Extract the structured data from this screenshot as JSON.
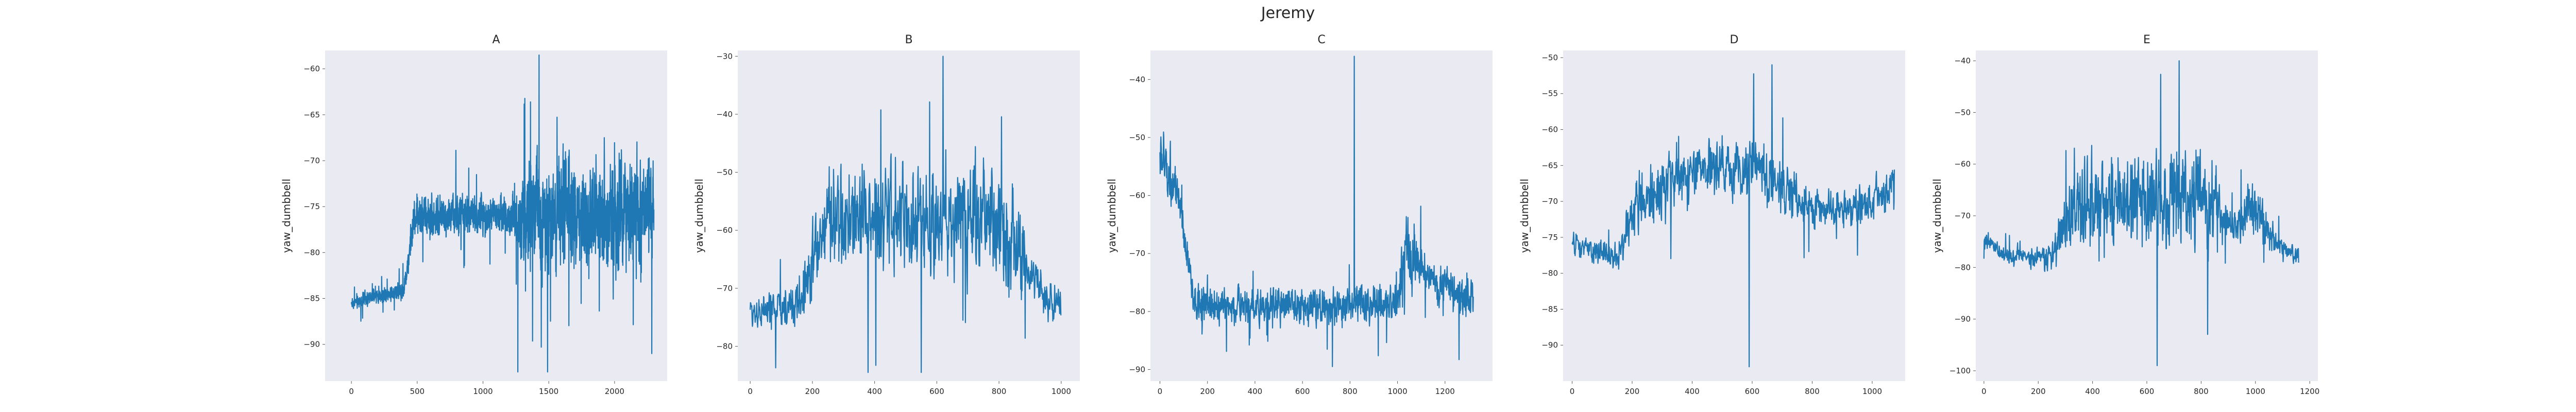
{
  "figure": {
    "suptitle": "Jeremy"
  },
  "chart_data": [
    {
      "type": "line",
      "title": "A",
      "xlabel": "",
      "ylabel": "yaw_dumbbell",
      "xlim": [
        -200,
        2400
      ],
      "ylim": [
        -94,
        -58
      ],
      "xticks": [
        0,
        500,
        1000,
        1500,
        2000
      ],
      "yticks": [
        -60,
        -65,
        -70,
        -75,
        -80,
        -85,
        -90
      ],
      "grid": false,
      "color": "#1f77b4",
      "n_points": 2300,
      "profile": [
        [
          0,
          -85.5
        ],
        [
          400,
          -84
        ],
        [
          480,
          -76
        ],
        [
          700,
          -76
        ],
        [
          1200,
          -76
        ],
        [
          1400,
          -76
        ],
        [
          1800,
          -76
        ],
        [
          2100,
          -76
        ],
        [
          2280,
          -76
        ]
      ],
      "noise": [
        [
          0,
          0.7
        ],
        [
          400,
          0.9
        ],
        [
          480,
          2.2
        ],
        [
          1200,
          2.0
        ],
        [
          1350,
          6.0
        ],
        [
          2280,
          6.0
        ]
      ],
      "extremes": {
        "max": -58.5,
        "min": -93
      }
    },
    {
      "type": "line",
      "title": "B",
      "xlabel": "",
      "ylabel": "yaw_dumbbell",
      "xlim": [
        -40,
        1060
      ],
      "ylim": [
        -86,
        -29
      ],
      "xticks": [
        0,
        200,
        400,
        600,
        800,
        1000
      ],
      "yticks": [
        -30,
        -40,
        -50,
        -60,
        -70,
        -80
      ],
      "grid": false,
      "color": "#1f77b4",
      "n_points": 1000,
      "profile": [
        [
          0,
          -74
        ],
        [
          150,
          -73
        ],
        [
          250,
          -58
        ],
        [
          500,
          -58
        ],
        [
          800,
          -58
        ],
        [
          900,
          -68
        ],
        [
          990,
          -73
        ]
      ],
      "noise": [
        [
          0,
          2.5
        ],
        [
          150,
          4
        ],
        [
          250,
          9
        ],
        [
          850,
          9
        ],
        [
          900,
          4
        ],
        [
          990,
          3
        ]
      ],
      "extremes": {
        "max": -30,
        "min": -84.5
      }
    },
    {
      "type": "line",
      "title": "C",
      "xlabel": "",
      "ylabel": "yaw_dumbbell",
      "xlim": [
        -40,
        1400
      ],
      "ylim": [
        -92,
        -35
      ],
      "xticks": [
        0,
        200,
        400,
        600,
        800,
        1000,
        1200
      ],
      "yticks": [
        -40,
        -50,
        -60,
        -70,
        -80,
        -90
      ],
      "grid": false,
      "color": "#1f77b4",
      "n_points": 1320,
      "profile": [
        [
          0,
          -53
        ],
        [
          60,
          -58
        ],
        [
          150,
          -79
        ],
        [
          1000,
          -79
        ],
        [
          1030,
          -68
        ],
        [
          1120,
          -74
        ],
        [
          1200,
          -76
        ],
        [
          1300,
          -78
        ]
      ],
      "noise": [
        [
          0,
          6
        ],
        [
          100,
          3
        ],
        [
          150,
          3
        ],
        [
          1000,
          3
        ],
        [
          1030,
          8
        ],
        [
          1120,
          3
        ],
        [
          1300,
          4
        ]
      ],
      "extremes": {
        "max": -36,
        "min": -89.5
      }
    },
    {
      "type": "line",
      "title": "D",
      "xlabel": "",
      "ylabel": "yaw_dumbbell",
      "xlim": [
        -30,
        1110
      ],
      "ylim": [
        -95,
        -49
      ],
      "xticks": [
        0,
        200,
        400,
        600,
        800,
        1000
      ],
      "yticks": [
        -50,
        -55,
        -60,
        -65,
        -70,
        -75,
        -80,
        -85,
        -90
      ],
      "grid": false,
      "color": "#1f77b4",
      "n_points": 1075,
      "profile": [
        [
          0,
          -76
        ],
        [
          150,
          -78
        ],
        [
          220,
          -70
        ],
        [
          400,
          -66
        ],
        [
          600,
          -65
        ],
        [
          800,
          -71
        ],
        [
          900,
          -71
        ],
        [
          1000,
          -70
        ],
        [
          1070,
          -68
        ]
      ],
      "noise": [
        [
          0,
          1.5
        ],
        [
          150,
          2
        ],
        [
          220,
          4
        ],
        [
          700,
          4
        ],
        [
          850,
          2
        ],
        [
          1070,
          3
        ]
      ],
      "extremes": {
        "max": -51,
        "min": -93
      }
    },
    {
      "type": "line",
      "title": "E",
      "xlabel": "",
      "ylabel": "yaw_dumbbell",
      "xlim": [
        -30,
        1230
      ],
      "ylim": [
        -102,
        -38
      ],
      "xticks": [
        0,
        200,
        400,
        600,
        800,
        1000,
        1200
      ],
      "yticks": [
        -40,
        -50,
        -60,
        -70,
        -80,
        -90,
        -100
      ],
      "grid": false,
      "color": "#1f77b4",
      "n_points": 1160,
      "profile": [
        [
          0,
          -75
        ],
        [
          100,
          -78
        ],
        [
          250,
          -78
        ],
        [
          330,
          -68
        ],
        [
          800,
          -66
        ],
        [
          900,
          -72
        ],
        [
          1000,
          -68
        ],
        [
          1080,
          -76
        ],
        [
          1160,
          -78
        ]
      ],
      "noise": [
        [
          0,
          1.5
        ],
        [
          250,
          2
        ],
        [
          330,
          9
        ],
        [
          850,
          9
        ],
        [
          900,
          3
        ],
        [
          1000,
          6
        ],
        [
          1080,
          2
        ],
        [
          1160,
          1.5
        ]
      ],
      "extremes": {
        "max": -40,
        "min": -99
      }
    }
  ]
}
